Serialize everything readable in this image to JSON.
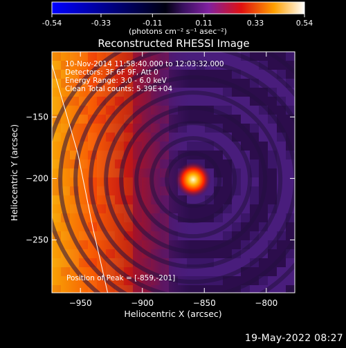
{
  "colorbar": {
    "ticks": [
      "-0.54",
      "-0.33",
      "-0.11",
      "0.11",
      "0.33",
      "0.54"
    ],
    "tick_values": [
      -0.54,
      -0.33,
      -0.11,
      0.11,
      0.33,
      0.54
    ],
    "range": [
      -0.54,
      0.54
    ],
    "units": "(photons cm⁻² s⁻¹ asec⁻²)",
    "stops": [
      "#0000ff",
      "#000000",
      "#8a2be2",
      "#ff0000",
      "#ffd700",
      "#ffffff"
    ]
  },
  "chart_data": {
    "type": "heatmap",
    "title": "Reconstructed RHESSI Image",
    "xlabel": "Heliocentric X (arcsec)",
    "ylabel": "Heliocentric Y (arcsec)",
    "xlim": [
      -973,
      -777
    ],
    "ylim": [
      -293,
      -97
    ],
    "xticks": [
      -950,
      -900,
      -850,
      -800
    ],
    "xtick_labels": [
      "−950",
      "−900",
      "−850",
      "−800"
    ],
    "yticks": [
      -150,
      -200,
      -250
    ],
    "ytick_labels": [
      "−150",
      "−200",
      "−250"
    ],
    "peak": {
      "x": -859,
      "y": -201
    },
    "limb": [
      [
        -973,
        -107
      ],
      [
        -952,
        -180
      ],
      [
        -940,
        -240
      ],
      [
        -928,
        -293
      ]
    ],
    "annotations": [
      "10-Nov-2014 11:58:40.000 to 12:03:32.000",
      "Detectors: 3F 6F 9F, Att 0",
      "Energy Range: 3.0 - 6.0 keV",
      "Clean     Total counts: 5.39E+04"
    ],
    "peak_label": "Position of Peak = [-859,-201]"
  },
  "footer": {
    "date": "19-May-2022 08:27"
  }
}
